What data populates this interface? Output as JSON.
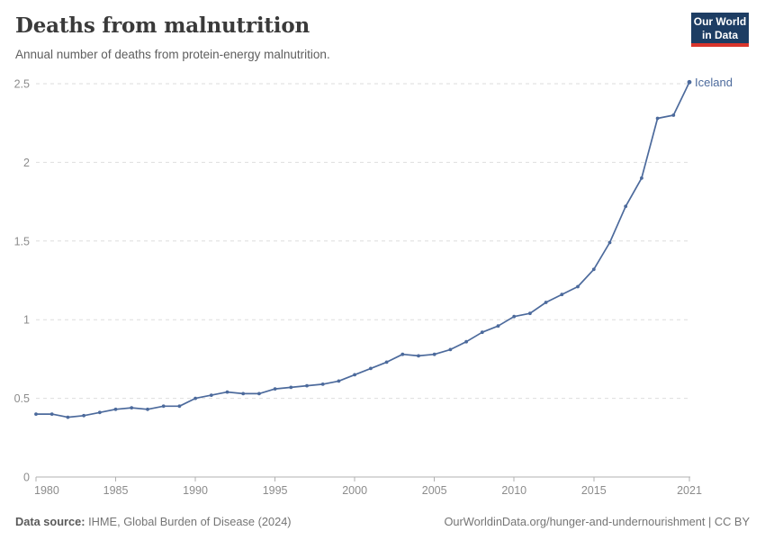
{
  "header": {
    "title": "Deaths from malnutrition",
    "subtitle": "Annual number of deaths from protein-energy malnutrition.",
    "logo": {
      "line1": "Our World",
      "line2": "in Data"
    }
  },
  "chart_data": {
    "type": "line",
    "title": "Deaths from malnutrition",
    "subtitle": "Annual number of deaths from protein-energy malnutrition.",
    "x": [
      1980,
      1981,
      1982,
      1983,
      1984,
      1985,
      1986,
      1987,
      1988,
      1989,
      1990,
      1991,
      1992,
      1993,
      1994,
      1995,
      1996,
      1997,
      1998,
      1999,
      2000,
      2001,
      2002,
      2003,
      2004,
      2005,
      2006,
      2007,
      2008,
      2009,
      2010,
      2011,
      2012,
      2013,
      2014,
      2015,
      2016,
      2017,
      2018,
      2019,
      2020,
      2021
    ],
    "series": [
      {
        "name": "Iceland",
        "color": "#4c6a9c",
        "values": [
          0.4,
          0.4,
          0.38,
          0.39,
          0.41,
          0.43,
          0.44,
          0.43,
          0.45,
          0.45,
          0.5,
          0.52,
          0.54,
          0.53,
          0.53,
          0.56,
          0.57,
          0.58,
          0.59,
          0.61,
          0.65,
          0.69,
          0.73,
          0.78,
          0.77,
          0.78,
          0.81,
          0.86,
          0.92,
          0.96,
          1.02,
          1.04,
          1.11,
          1.16,
          1.21,
          1.32,
          1.49,
          1.72,
          1.9,
          2.28,
          2.3,
          2.51
        ]
      }
    ],
    "xlabel": "",
    "ylabel": "",
    "xlim": [
      1980,
      2021
    ],
    "ylim": [
      0,
      2.5
    ],
    "x_ticks": [
      1980,
      1985,
      1990,
      1995,
      2000,
      2005,
      2010,
      2015,
      2021
    ],
    "y_ticks": [
      0,
      0.5,
      1,
      1.5,
      2,
      2.5
    ],
    "grid": "horizontal-dashed",
    "legend_position": "end-of-line-label",
    "end_label": "Iceland"
  },
  "footer": {
    "data_source_label": "Data source:",
    "data_source_value": "IHME, Global Burden of Disease (2024)",
    "url": "OurWorldinData.org/hunger-and-undernourishment",
    "separator": " | ",
    "license": "CC BY"
  },
  "colors": {
    "series_blue": "#4c6a9c",
    "logo_navy": "#1d3d63",
    "logo_red": "#d9352c",
    "gridline": "#dedede",
    "axis": "#b0b0b0",
    "tick_label": "#8c8c8c"
  }
}
